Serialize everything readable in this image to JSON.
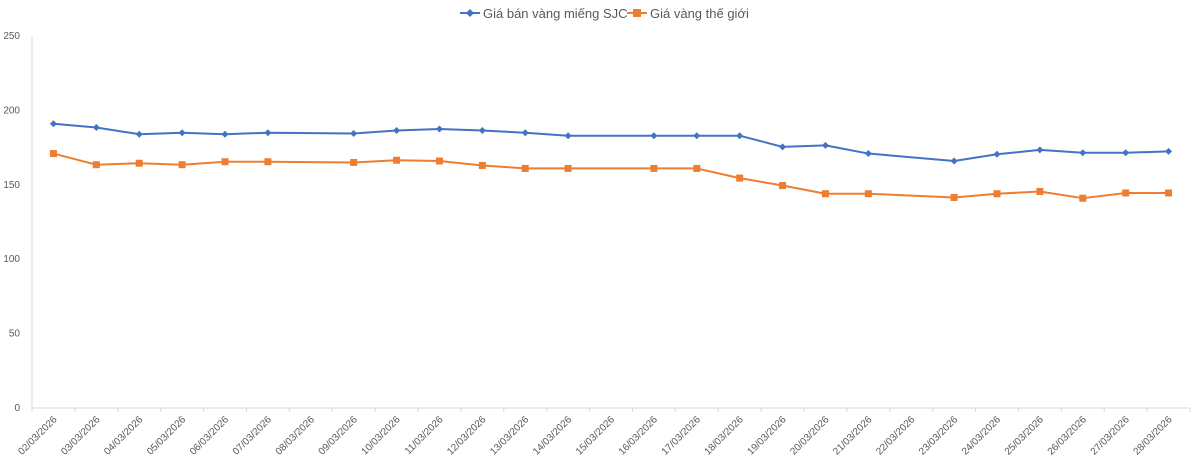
{
  "chart_data": {
    "type": "line",
    "title": "",
    "xlabel": "",
    "ylabel": "",
    "ylim": [
      0,
      250
    ],
    "yticks": [
      0,
      50,
      100,
      150,
      200,
      250
    ],
    "grid": false,
    "legend_position": "top",
    "categories": [
      "02/03/2026",
      "03/03/2026",
      "04/03/2026",
      "05/03/2026",
      "06/03/2026",
      "07/03/2026",
      "08/03/2026",
      "09/03/2026",
      "10/03/2026",
      "11/03/2026",
      "12/03/2026",
      "13/03/2026",
      "14/03/2026",
      "15/03/2026",
      "16/03/2026",
      "17/03/2026",
      "18/03/2026",
      "19/03/2026",
      "20/03/2026",
      "21/03/2026",
      "22/03/2026",
      "23/03/2026",
      "24/03/2026",
      "25/03/2026",
      "26/03/2026",
      "27/03/2026",
      "28/03/2026"
    ],
    "series": [
      {
        "name": "Giá bán vàng miếng SJC",
        "color": "#4472C4",
        "marker": "diamond",
        "values": [
          191,
          188.5,
          184,
          185,
          184,
          185,
          null,
          184.5,
          186.5,
          187.5,
          186.5,
          185,
          183,
          null,
          183,
          183,
          183,
          175.5,
          176.5,
          171,
          null,
          166,
          170.5,
          173.5,
          171.5,
          171.5,
          172.5
        ]
      },
      {
        "name": "Giá vàng thế giới",
        "color": "#ED7D31",
        "marker": "square",
        "values": [
          171,
          163.5,
          164.5,
          163.5,
          165.5,
          165.5,
          null,
          165,
          166.5,
          166,
          163,
          161,
          161,
          null,
          161,
          161,
          154.5,
          149.5,
          144,
          144,
          null,
          141.5,
          144,
          145.5,
          141,
          144.5,
          144.5
        ]
      }
    ]
  },
  "legend": {
    "items": [
      {
        "label": "Giá bán vàng miếng SJC",
        "color": "#4472C4",
        "marker": "diamond-icon"
      },
      {
        "label": "Giá vàng thế giới",
        "color": "#ED7D31",
        "marker": "square-icon"
      }
    ]
  },
  "axes": {
    "axis_color": "#D9D9D9",
    "label_color": "#595959"
  }
}
